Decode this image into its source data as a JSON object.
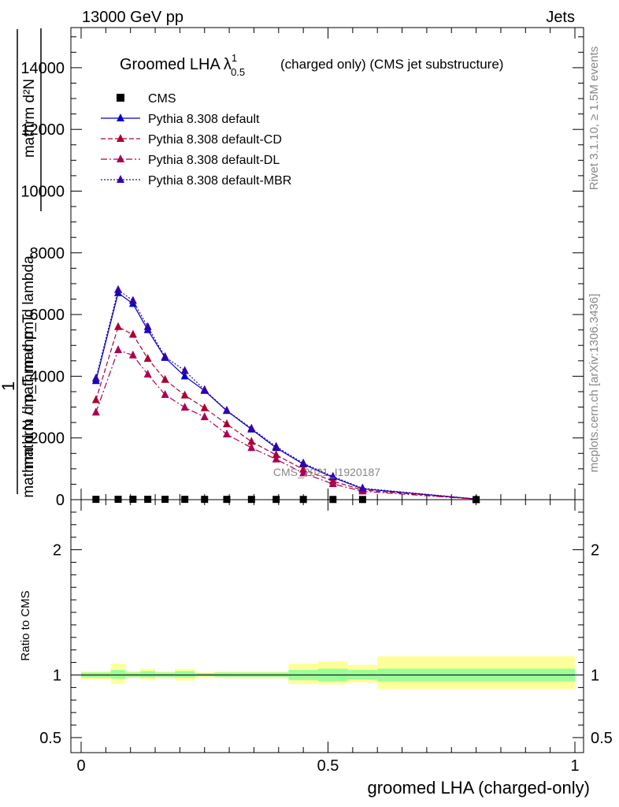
{
  "header": {
    "left": "13000 GeV pp",
    "right": "Jets"
  },
  "side": {
    "rivet": "Rivet 3.1.10, ≥ 1.5M events",
    "mcplots": "mcplots.cern.ch [arXiv:1306.3436]"
  },
  "chart_data": {
    "type": "line",
    "title": "Groomed LHA",
    "title_symbol": "λ",
    "title_sup": "1",
    "title_sub": "0.5",
    "title_suffix": "(charged only) (CMS jet substructure)",
    "watermark": "CMS_2021_I1920187",
    "xlabel": "groomed LHA (charged-only)",
    "ylabel_top_num": "1",
    "ylabel_top_den": "mathrm d N / mathrm d p",
    "ylabel_top_den_sub": "T",
    "ylabel_top_mid": "mathrm d",
    "ylabel_top_mid_sup": "2",
    "ylabel_top_rhs": "N",
    "ylabel_top_rhs_den": "mathrm d p",
    "ylabel_top_rhs_den_sub": "T",
    "ylabel_top_rhs_tail": "mathrm d lambda",
    "ylabel_lines": [
      "mathrm d²N",
      "mathrm d p_T mathrm d lambda",
      "1",
      "mathrm d N / mathrm d p_T"
    ],
    "ylabel_ratio": "Ratio to CMS",
    "xlim": [
      0,
      1
    ],
    "ylim_main": [
      0,
      15300
    ],
    "ylim_ratio": [
      0.38,
      2.4
    ],
    "xticks": [
      {
        "v": 0,
        "label": "0"
      },
      {
        "v": 0.5,
        "label": "0.5"
      },
      {
        "v": 1,
        "label": "1"
      }
    ],
    "yticks_main": [
      {
        "v": 0,
        "label": "0"
      },
      {
        "v": 2000,
        "label": "2000"
      },
      {
        "v": 4000,
        "label": "4000"
      },
      {
        "v": 6000,
        "label": "6000"
      },
      {
        "v": 8000,
        "label": "8000"
      },
      {
        "v": 10000,
        "label": "10000"
      },
      {
        "v": 12000,
        "label": "12000"
      },
      {
        "v": 14000,
        "label": "14000"
      }
    ],
    "yticks_ratio": [
      {
        "v": 0.5,
        "label": "0.5"
      },
      {
        "v": 1,
        "label": "1"
      },
      {
        "v": 2,
        "label": "2"
      }
    ],
    "x": [
      0.03,
      0.075,
      0.105,
      0.135,
      0.17,
      0.21,
      0.25,
      0.295,
      0.345,
      0.395,
      0.45,
      0.51,
      0.57,
      0.8
    ],
    "bin_edges": [
      0,
      0.06,
      0.09,
      0.12,
      0.15,
      0.19,
      0.23,
      0.27,
      0.32,
      0.37,
      0.42,
      0.48,
      0.54,
      0.6,
      1.0
    ],
    "cms": {
      "name": "CMS",
      "color": "#000000",
      "values": [
        10,
        12,
        12,
        11,
        11,
        10,
        9,
        9,
        8,
        8,
        7,
        6,
        5,
        1
      ]
    },
    "series": [
      {
        "name": "Pythia 8.308 default",
        "color": "#0000cc",
        "dash": "",
        "values": [
          3850,
          6700,
          6350,
          5500,
          4600,
          4000,
          3530,
          2880,
          2280,
          1680,
          1150,
          720,
          350,
          20
        ]
      },
      {
        "name": "Pythia 8.308 default-CD",
        "color": "#aa0033",
        "dash": "6,3",
        "values": [
          3230,
          5600,
          5350,
          4570,
          3890,
          3380,
          2970,
          2450,
          1880,
          1450,
          980,
          600,
          310,
          18
        ]
      },
      {
        "name": "Pythia 8.308 default-DL",
        "color": "#aa0055",
        "dash": "8,3,2,3",
        "values": [
          2830,
          4850,
          4680,
          4060,
          3400,
          2990,
          2680,
          2120,
          1680,
          1310,
          860,
          510,
          270,
          15
        ]
      },
      {
        "name": "Pythia 8.308 default-MBR",
        "color": "#3300aa",
        "dash": "2,2",
        "values": [
          3930,
          6800,
          6450,
          5600,
          4630,
          4180,
          3560,
          2890,
          2310,
          1720,
          1180,
          750,
          370,
          22
        ]
      }
    ],
    "ratio_band": {
      "inner_color": "#99ff99",
      "outer_color": "#ffff99",
      "inner": [
        [
          0.98,
          1.02
        ],
        [
          0.97,
          1.04
        ],
        [
          0.985,
          1.02
        ],
        [
          0.98,
          1.03
        ],
        [
          0.985,
          1.02
        ],
        [
          0.98,
          1.03
        ],
        [
          0.99,
          1.015
        ],
        [
          0.985,
          1.02
        ],
        [
          0.985,
          1.02
        ],
        [
          0.985,
          1.02
        ],
        [
          0.96,
          1.04
        ],
        [
          0.95,
          1.05
        ],
        [
          0.965,
          1.04
        ],
        [
          0.95,
          1.05
        ]
      ],
      "outer": [
        [
          0.965,
          1.03
        ],
        [
          0.93,
          1.09
        ],
        [
          0.975,
          1.03
        ],
        [
          0.965,
          1.05
        ],
        [
          0.975,
          1.025
        ],
        [
          0.955,
          1.05
        ],
        [
          0.975,
          1.02
        ],
        [
          0.975,
          1.025
        ],
        [
          0.975,
          1.025
        ],
        [
          0.975,
          1.025
        ],
        [
          0.93,
          1.09
        ],
        [
          0.925,
          1.11
        ],
        [
          0.94,
          1.08
        ],
        [
          0.89,
          1.15
        ]
      ]
    }
  }
}
